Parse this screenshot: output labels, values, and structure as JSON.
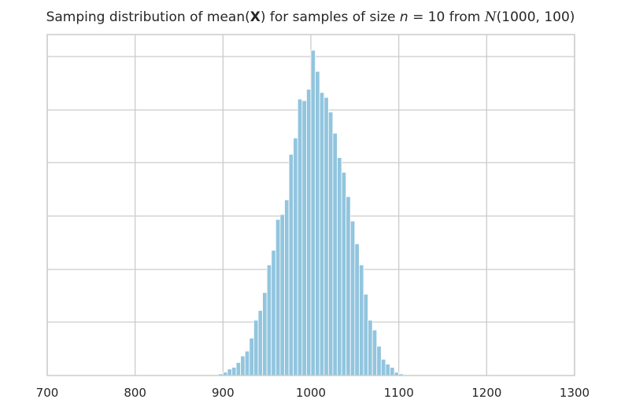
{
  "title": {
    "prefix": "Samping distribution of mean(",
    "bold": "X",
    "middle": ") for samples of size ",
    "n_symbol": "n",
    "n_equals": " = 10 from ",
    "dist_symbol": "N",
    "dist_params": "(1000, 100)"
  },
  "chart_data": {
    "type": "bar",
    "xlim": [
      700,
      1300
    ],
    "x_ticks": [
      "700",
      "800",
      "900",
      "1000",
      "1100",
      "1200",
      "1300"
    ],
    "y_ticks_shown": false,
    "grid": true,
    "bin_width": 5,
    "bin_starts": [
      895,
      900,
      905,
      910,
      915,
      920,
      925,
      930,
      935,
      940,
      945,
      950,
      955,
      960,
      965,
      970,
      975,
      980,
      985,
      990,
      995,
      1000,
      1005,
      1010,
      1015,
      1020,
      1025,
      1030,
      1035,
      1040,
      1045,
      1050,
      1055,
      1060,
      1065,
      1070,
      1075,
      1080,
      1085,
      1090,
      1095,
      1100,
      1105
    ],
    "relative_heights": [
      0.005,
      0.01,
      0.02,
      0.025,
      0.04,
      0.06,
      0.075,
      0.115,
      0.17,
      0.2,
      0.255,
      0.34,
      0.385,
      0.48,
      0.495,
      0.54,
      0.68,
      0.73,
      0.85,
      0.845,
      0.88,
      1.0,
      0.935,
      0.87,
      0.855,
      0.81,
      0.745,
      0.67,
      0.625,
      0.55,
      0.475,
      0.405,
      0.34,
      0.25,
      0.17,
      0.14,
      0.09,
      0.05,
      0.035,
      0.025,
      0.01,
      0.005,
      0.002
    ],
    "colors": {
      "bar_fill": "#92c5de",
      "bar_edge": "#ffffff",
      "grid": "#cccccc",
      "axis_frame": "#cccccc"
    }
  }
}
